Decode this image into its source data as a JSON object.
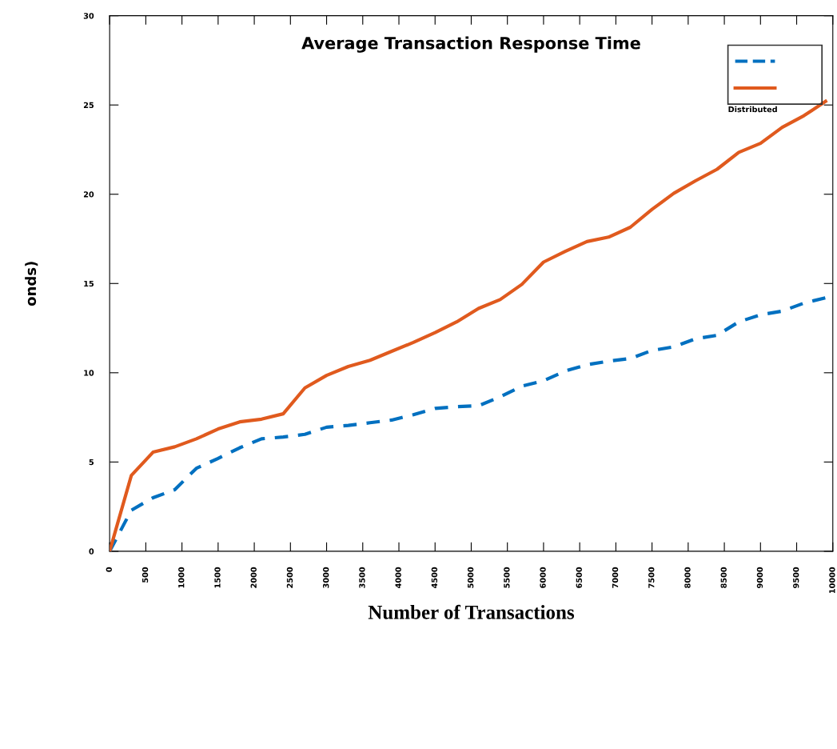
{
  "chart_data": {
    "type": "line",
    "title": "Average Transaction Response Time",
    "xlabel": "Number of Transactions",
    "ylabel": "onds)",
    "x": [
      0,
      300,
      600,
      900,
      1200,
      1500,
      1800,
      2100,
      2400,
      2700,
      3000,
      3300,
      3600,
      3900,
      4200,
      4500,
      4800,
      5100,
      5400,
      5700,
      6000,
      6300,
      6600,
      6900,
      7200,
      7500,
      7800,
      8100,
      8400,
      8700,
      9000,
      9300,
      9600,
      9900
    ],
    "series": [
      {
        "color": "#0070c0",
        "line_style": "dashed",
        "values": [
          0,
          2.3,
          3.0,
          3.45,
          4.65,
          5.2,
          5.8,
          6.3,
          6.4,
          6.55,
          6.95,
          7.05,
          7.2,
          7.35,
          7.65,
          8.0,
          8.1,
          8.15,
          8.65,
          9.25,
          9.55,
          10.1,
          10.45,
          10.65,
          10.8,
          11.25,
          11.45,
          11.9,
          12.1,
          12.85,
          13.25,
          13.45,
          13.9,
          14.2
        ]
      },
      {
        "color": "#e05a1e",
        "line_style": "solid",
        "values": [
          0,
          4.25,
          5.55,
          5.85,
          6.3,
          6.85,
          7.25,
          7.4,
          7.7,
          9.15,
          9.85,
          10.35,
          10.7,
          11.2,
          11.7,
          12.25,
          12.85,
          13.6,
          14.1,
          14.95,
          16.2,
          16.8,
          17.35,
          17.6,
          18.15,
          19.15,
          20.05,
          20.75,
          21.4,
          22.35,
          22.85,
          23.75,
          24.4,
          25.2
        ]
      }
    ],
    "xlim": [
      0,
      10000
    ],
    "xticks": [
      0,
      500,
      1000,
      1500,
      2000,
      2500,
      3000,
      3500,
      4000,
      4500,
      5000,
      5500,
      6000,
      6500,
      7000,
      7500,
      8000,
      8500,
      9000,
      9500,
      10000
    ],
    "ylim": [
      0,
      30
    ],
    "yticks": [
      0,
      5,
      10,
      15,
      20,
      25,
      30
    ],
    "grid": false,
    "marker": "none",
    "annotations": [
      "Distributed"
    ]
  }
}
